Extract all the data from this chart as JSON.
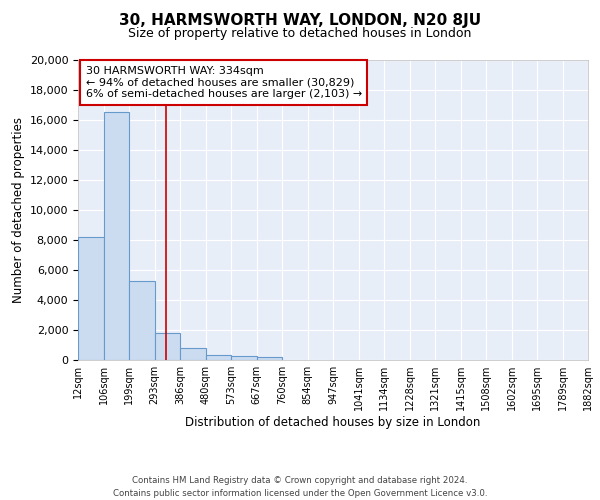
{
  "title": "30, HARMSWORTH WAY, LONDON, N20 8JU",
  "subtitle": "Size of property relative to detached houses in London",
  "xlabel": "Distribution of detached houses by size in London",
  "ylabel": "Number of detached properties",
  "footer_line1": "Contains HM Land Registry data © Crown copyright and database right 2024.",
  "footer_line2": "Contains public sector information licensed under the Open Government Licence v3.0.",
  "annotation_line1": "30 HARMSWORTH WAY: 334sqm",
  "annotation_line2": "← 94% of detached houses are smaller (30,829)",
  "annotation_line3": "6% of semi-detached houses are larger (2,103) →",
  "property_size": 334,
  "bin_edges": [
    12,
    106,
    199,
    293,
    386,
    480,
    573,
    667,
    760,
    854,
    947,
    1041,
    1134,
    1228,
    1321,
    1415,
    1508,
    1602,
    1695,
    1789,
    1882
  ],
  "bin_labels": [
    "12sqm",
    "106sqm",
    "199sqm",
    "293sqm",
    "386sqm",
    "480sqm",
    "573sqm",
    "667sqm",
    "760sqm",
    "854sqm",
    "947sqm",
    "1041sqm",
    "1134sqm",
    "1228sqm",
    "1321sqm",
    "1415sqm",
    "1508sqm",
    "1602sqm",
    "1695sqm",
    "1789sqm",
    "1882sqm"
  ],
  "bar_heights": [
    8200,
    16500,
    5300,
    1800,
    800,
    350,
    250,
    200,
    0,
    0,
    0,
    0,
    0,
    0,
    0,
    0,
    0,
    0,
    0,
    0
  ],
  "bar_color": "#ccdcf0",
  "bar_edge_color": "#6699cc",
  "line_color": "#cc0000",
  "background_color": "#e8eef8",
  "grid_color": "#ffffff",
  "ylim": [
    0,
    20000
  ],
  "yticks": [
    0,
    2000,
    4000,
    6000,
    8000,
    10000,
    12000,
    14000,
    16000,
    18000,
    20000
  ]
}
